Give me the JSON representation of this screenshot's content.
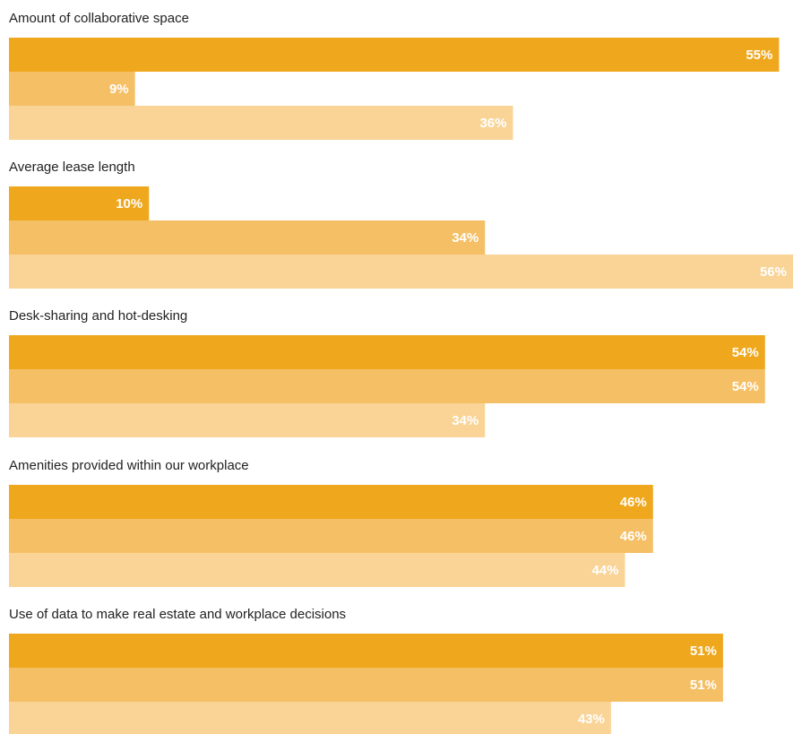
{
  "chart_data": {
    "type": "bar",
    "orientation": "horizontal",
    "value_suffix": "%",
    "xlim": [
      0,
      55
    ],
    "grid": false,
    "legend": "none",
    "series_colors": [
      "#efa81d",
      "#f5bf65",
      "#f9d496"
    ],
    "categories": [
      "Amount of collaborative space",
      "Average lease length",
      "Desk-sharing and hot-desking",
      "Amenities provided within our workplace",
      "Use of data to make real estate and workplace decisions"
    ],
    "series": [
      {
        "values": [
          55,
          10,
          54,
          46,
          51
        ]
      },
      {
        "values": [
          9,
          34,
          54,
          46,
          51
        ]
      },
      {
        "values": [
          36,
          56,
          34,
          44,
          43
        ]
      }
    ]
  }
}
